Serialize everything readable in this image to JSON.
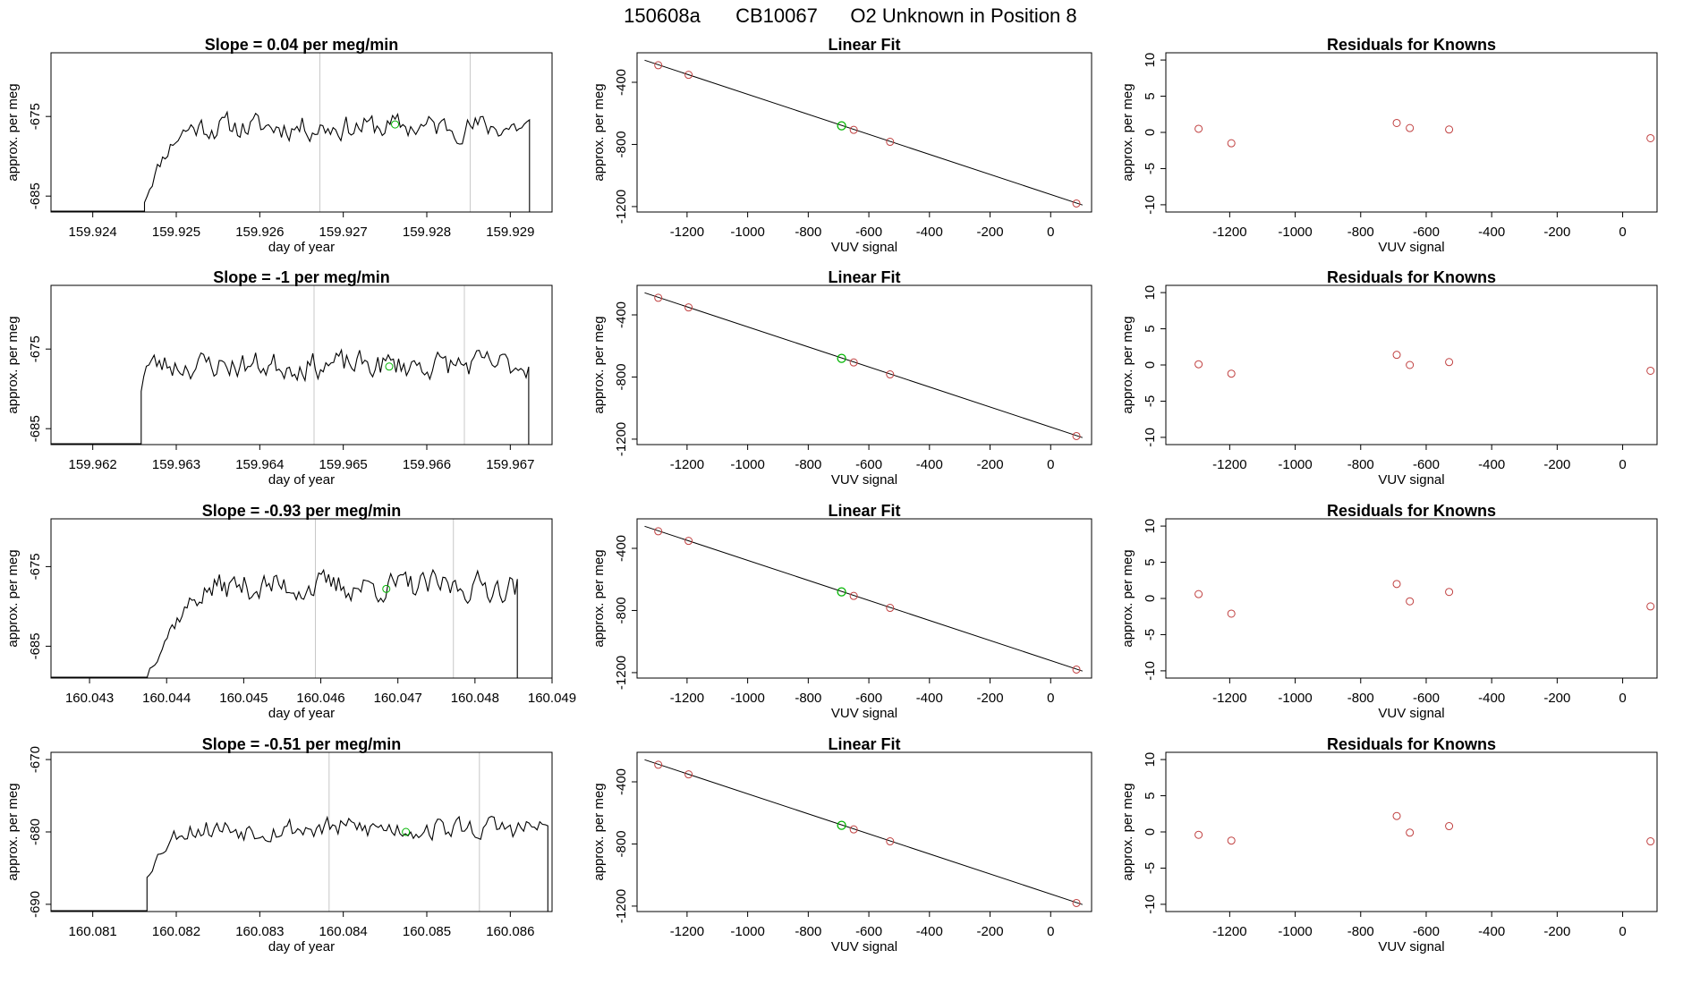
{
  "figure": {
    "title_parts": [
      "150608a",
      "CB10067",
      "O2 Unknown in Position  8"
    ],
    "colors": {
      "trace": "#000000",
      "vline": "#c8c8c8",
      "green": "#00b400",
      "red": "#c04040"
    }
  },
  "chart_data": [
    {
      "id": "r1-series",
      "type": "line",
      "title": "Slope =  0.04  per meg/min",
      "xlabel": "day of year",
      "ylabel": "approx. per meg",
      "xlim": [
        159.9235,
        159.9295
      ],
      "ylim": [
        -687,
        -667
      ],
      "xticks": [
        159.924,
        159.925,
        159.926,
        159.927,
        159.928,
        159.929
      ],
      "xtick_labels": [
        "159.924",
        "159.925",
        "159.926",
        "159.927",
        "159.928",
        "159.929"
      ],
      "yticks": [
        -675,
        -685
      ],
      "ytick_labels": [
        "-675",
        "-685"
      ],
      "series_start_x": 159.92462,
      "series_end_x": 159.92923,
      "baseline_y": -687,
      "y_low": -685.5,
      "rise_x": 159.92525,
      "plateau_y": -676.3,
      "noise_amp": 1.6,
      "n_points": 150,
      "seed": 11,
      "vlines": [
        159.92672,
        159.92852
      ],
      "green_point": {
        "x": 159.92762,
        "y": -676.0
      }
    },
    {
      "id": "r1-fit",
      "type": "scatter",
      "title": "Linear Fit",
      "xlabel": "VUV signal",
      "ylabel": "approx. per meg",
      "xlim": [
        -1365,
        135
      ],
      "ylim": [
        -1235,
        -210
      ],
      "xticks": [
        -1200,
        -1000,
        -800,
        -600,
        -400,
        -200,
        0
      ],
      "xtick_labels": [
        "-1200",
        "-1000",
        "-800",
        "-600",
        "-400",
        "-200",
        "0"
      ],
      "yticks": [
        -400,
        -800,
        -1200
      ],
      "ytick_labels": [
        "-400",
        "-800",
        "-1200"
      ],
      "fit_line": [
        [
          -1340,
          -258
        ],
        [
          105,
          -1190
        ]
      ],
      "red_points": [
        [
          -1295,
          -290
        ],
        [
          -1195,
          -352
        ],
        [
          -650,
          -706
        ],
        [
          -530,
          -783
        ],
        [
          85,
          -1180
        ]
      ],
      "green_point": [
        -690,
        -680
      ]
    },
    {
      "id": "r1-resid",
      "type": "scatter",
      "title": "Residuals for Knowns",
      "xlabel": "VUV signal",
      "ylabel": "approx. per meg",
      "xlim": [
        -1395,
        105
      ],
      "ylim": [
        -11,
        11
      ],
      "xticks": [
        -1200,
        -1000,
        -800,
        -600,
        -400,
        -200,
        0
      ],
      "xtick_labels": [
        "-1200",
        "-1000",
        "-800",
        "-600",
        "-400",
        "-200",
        "0"
      ],
      "yticks": [
        10,
        5,
        0,
        -5,
        -10
      ],
      "ytick_labels": [
        "10",
        "5",
        "0",
        "-5",
        "-10"
      ],
      "points": [
        [
          -1295,
          0.5
        ],
        [
          -1195,
          -1.5
        ],
        [
          -690,
          1.3
        ],
        [
          -650,
          0.6
        ],
        [
          -530,
          0.4
        ],
        [
          85,
          -0.8
        ]
      ]
    },
    {
      "id": "r2-series",
      "type": "line",
      "title": "Slope =  -1  per meg/min",
      "xlabel": "day of year",
      "ylabel": "approx. per meg",
      "xlim": [
        159.9615,
        159.9675
      ],
      "ylim": [
        -687,
        -667
      ],
      "xticks": [
        159.962,
        159.963,
        159.964,
        159.965,
        159.966,
        159.967
      ],
      "xtick_labels": [
        "159.962",
        "159.963",
        "159.964",
        "159.965",
        "159.966",
        "159.967"
      ],
      "yticks": [
        -675,
        -685
      ],
      "ytick_labels": [
        "-675",
        "-685"
      ],
      "series_start_x": 159.96258,
      "series_end_x": 159.96722,
      "baseline_y": -687,
      "y_low": -680.0,
      "rise_x": 159.96265,
      "plateau_y": -677.0,
      "noise_amp": 1.7,
      "n_points": 150,
      "seed": 23,
      "vlines": [
        159.96465,
        159.96645
      ],
      "green_point": {
        "x": 159.96555,
        "y": -677.2
      }
    },
    {
      "id": "r2-fit",
      "type": "scatter",
      "title": "Linear Fit",
      "xlabel": "VUV signal",
      "ylabel": "approx. per meg",
      "xlim": [
        -1365,
        135
      ],
      "ylim": [
        -1235,
        -210
      ],
      "xticks": [
        -1200,
        -1000,
        -800,
        -600,
        -400,
        -200,
        0
      ],
      "xtick_labels": [
        "-1200",
        "-1000",
        "-800",
        "-600",
        "-400",
        "-200",
        "0"
      ],
      "yticks": [
        -400,
        -800,
        -1200
      ],
      "ytick_labels": [
        "-400",
        "-800",
        "-1200"
      ],
      "fit_line": [
        [
          -1340,
          -258
        ],
        [
          105,
          -1190
        ]
      ],
      "red_points": [
        [
          -1295,
          -290
        ],
        [
          -1195,
          -352
        ],
        [
          -650,
          -706
        ],
        [
          -530,
          -783
        ],
        [
          85,
          -1180
        ]
      ],
      "green_point": [
        -690,
        -680
      ]
    },
    {
      "id": "r2-resid",
      "type": "scatter",
      "title": "Residuals for Knowns",
      "xlabel": "VUV signal",
      "ylabel": "approx. per meg",
      "xlim": [
        -1395,
        105
      ],
      "ylim": [
        -11,
        11
      ],
      "xticks": [
        -1200,
        -1000,
        -800,
        -600,
        -400,
        -200,
        0
      ],
      "xtick_labels": [
        "-1200",
        "-1000",
        "-800",
        "-600",
        "-400",
        "-200",
        "0"
      ],
      "yticks": [
        10,
        5,
        0,
        -5,
        -10
      ],
      "ytick_labels": [
        "10",
        "5",
        "0",
        "-5",
        "-10"
      ],
      "points": [
        [
          -1295,
          0.1
        ],
        [
          -1195,
          -1.2
        ],
        [
          -690,
          1.4
        ],
        [
          -650,
          0.0
        ],
        [
          -530,
          0.4
        ],
        [
          85,
          -0.8
        ]
      ]
    },
    {
      "id": "r3-series",
      "type": "line",
      "title": "Slope =  -0.93  per meg/min",
      "xlabel": "day of year",
      "ylabel": "approx. per meg",
      "xlim": [
        160.0425,
        160.049
      ],
      "ylim": [
        -689,
        -669
      ],
      "xticks": [
        160.043,
        160.044,
        160.045,
        160.046,
        160.047,
        160.048,
        160.049
      ],
      "xtick_labels": [
        "160.043",
        "160.044",
        "160.045",
        "160.046",
        "160.047",
        "160.048",
        "160.049"
      ],
      "yticks": [
        -675,
        -685
      ],
      "ytick_labels": [
        "-675",
        "-685"
      ],
      "series_start_x": 160.04375,
      "series_end_x": 160.04855,
      "baseline_y": -689,
      "y_low": -688.5,
      "rise_x": 160.04475,
      "plateau_y": -677.5,
      "noise_amp": 1.8,
      "n_points": 150,
      "seed": 37,
      "vlines": [
        160.04593,
        160.04772
      ],
      "green_point": {
        "x": 160.04685,
        "y": -677.8
      }
    },
    {
      "id": "r3-fit",
      "type": "scatter",
      "title": "Linear Fit",
      "xlabel": "VUV signal",
      "ylabel": "approx. per meg",
      "xlim": [
        -1365,
        135
      ],
      "ylim": [
        -1235,
        -210
      ],
      "xticks": [
        -1200,
        -1000,
        -800,
        -600,
        -400,
        -200,
        0
      ],
      "xtick_labels": [
        "-1200",
        "-1000",
        "-800",
        "-600",
        "-400",
        "-200",
        "0"
      ],
      "yticks": [
        -400,
        -800,
        -1200
      ],
      "ytick_labels": [
        "-400",
        "-800",
        "-1200"
      ],
      "fit_line": [
        [
          -1340,
          -258
        ],
        [
          105,
          -1190
        ]
      ],
      "red_points": [
        [
          -1295,
          -290
        ],
        [
          -1195,
          -352
        ],
        [
          -650,
          -706
        ],
        [
          -530,
          -783
        ],
        [
          85,
          -1180
        ]
      ],
      "green_point": [
        -690,
        -680
      ]
    },
    {
      "id": "r3-resid",
      "type": "scatter",
      "title": "Residuals for Knowns",
      "xlabel": "VUV signal",
      "ylabel": "approx. per meg",
      "xlim": [
        -1395,
        105
      ],
      "ylim": [
        -11,
        11
      ],
      "xticks": [
        -1200,
        -1000,
        -800,
        -600,
        -400,
        -200,
        0
      ],
      "xtick_labels": [
        "-1200",
        "-1000",
        "-800",
        "-600",
        "-400",
        "-200",
        "0"
      ],
      "yticks": [
        10,
        5,
        0,
        -5,
        -10
      ],
      "ytick_labels": [
        "10",
        "5",
        "0",
        "-5",
        "-10"
      ],
      "points": [
        [
          -1295,
          0.6
        ],
        [
          -1195,
          -2.1
        ],
        [
          -690,
          2.0
        ],
        [
          -650,
          -0.4
        ],
        [
          -530,
          0.9
        ],
        [
          85,
          -1.1
        ]
      ]
    },
    {
      "id": "r4-series",
      "type": "line",
      "title": "Slope =  -0.51  per meg/min",
      "xlabel": "day of year",
      "ylabel": "approx. per meg",
      "xlim": [
        160.0805,
        160.0865
      ],
      "ylim": [
        -691,
        -669
      ],
      "xticks": [
        160.081,
        160.082,
        160.083,
        160.084,
        160.085,
        160.086
      ],
      "xtick_labels": [
        "160.081",
        "160.082",
        "160.083",
        "160.084",
        "160.085",
        "160.086"
      ],
      "yticks": [
        -670,
        -680,
        -690
      ],
      "ytick_labels": [
        "-670",
        "-680",
        "-690"
      ],
      "series_start_x": 160.08165,
      "series_end_x": 160.08645,
      "baseline_y": -691,
      "y_low": -686.0,
      "rise_x": 160.0822,
      "plateau_y": -679.5,
      "noise_amp": 1.6,
      "n_points": 150,
      "seed": 53,
      "vlines": [
        160.08383,
        160.08563
      ],
      "green_point": {
        "x": 160.08475,
        "y": -680.0
      }
    },
    {
      "id": "r4-fit",
      "type": "scatter",
      "title": "Linear Fit",
      "xlabel": "VUV signal",
      "ylabel": "approx. per meg",
      "xlim": [
        -1365,
        135
      ],
      "ylim": [
        -1235,
        -210
      ],
      "xticks": [
        -1200,
        -1000,
        -800,
        -600,
        -400,
        -200,
        0
      ],
      "xtick_labels": [
        "-1200",
        "-1000",
        "-800",
        "-600",
        "-400",
        "-200",
        "0"
      ],
      "yticks": [
        -400,
        -800,
        -1200
      ],
      "ytick_labels": [
        "-400",
        "-800",
        "-1200"
      ],
      "fit_line": [
        [
          -1340,
          -258
        ],
        [
          105,
          -1190
        ]
      ],
      "red_points": [
        [
          -1295,
          -290
        ],
        [
          -1195,
          -352
        ],
        [
          -650,
          -706
        ],
        [
          -530,
          -783
        ],
        [
          85,
          -1180
        ]
      ],
      "green_point": [
        -690,
        -680
      ]
    },
    {
      "id": "r4-resid",
      "type": "scatter",
      "title": "Residuals for Knowns",
      "xlabel": "VUV signal",
      "ylabel": "approx. per meg",
      "xlim": [
        -1395,
        105
      ],
      "ylim": [
        -11,
        11
      ],
      "xticks": [
        -1200,
        -1000,
        -800,
        -600,
        -400,
        -200,
        0
      ],
      "xtick_labels": [
        "-1200",
        "-1000",
        "-800",
        "-600",
        "-400",
        "-200",
        "0"
      ],
      "points": [
        [
          -1295,
          -0.4
        ],
        [
          -1195,
          -1.2
        ],
        [
          -690,
          2.2
        ],
        [
          -650,
          -0.1
        ],
        [
          -530,
          0.8
        ],
        [
          85,
          -1.3
        ]
      ],
      "yticks": [
        10,
        5,
        0,
        -5,
        -10
      ],
      "ytick_labels": [
        "10",
        "5",
        "0",
        "-5",
        "-10"
      ]
    }
  ]
}
